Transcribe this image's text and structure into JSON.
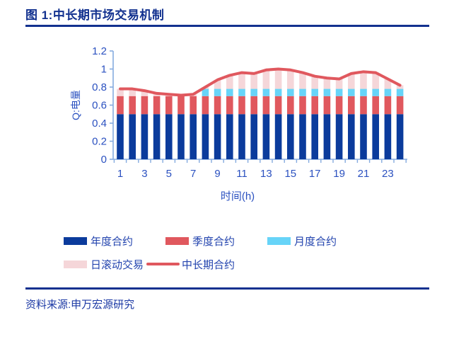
{
  "page": {
    "title": "图 1:中长期市场交易机制",
    "source": "资料来源:申万宏源研究",
    "accent_color": "#12318f"
  },
  "chart_data": {
    "type": "bar",
    "subtype": "stacked-bar-with-line-overlay",
    "title": "",
    "xlabel": "时间(h)",
    "ylabel": "Q:电量",
    "x": [
      1,
      2,
      3,
      4,
      5,
      6,
      7,
      8,
      9,
      10,
      11,
      12,
      13,
      14,
      15,
      16,
      17,
      18,
      19,
      20,
      21,
      22,
      23,
      24
    ],
    "x_tick_labels": [
      "1",
      "3",
      "5",
      "7",
      "9",
      "11",
      "13",
      "15",
      "17",
      "19",
      "21",
      "23"
    ],
    "x_tick_values": [
      1,
      3,
      5,
      7,
      9,
      11,
      13,
      15,
      17,
      19,
      21,
      23
    ],
    "ylim": [
      0,
      1.2
    ],
    "ytick_values": [
      0,
      0.2,
      0.4,
      0.6,
      0.8,
      1,
      1.2
    ],
    "ytick_labels": [
      "0",
      "0.2",
      "0.4",
      "0.6",
      "0.8",
      "1",
      "1.2"
    ],
    "grid": false,
    "legend_position": "bottom",
    "axis_color": "#85abdf",
    "tick_label_color": "#2b51c0",
    "series": [
      {
        "key": "annual",
        "name": "年度合约",
        "type": "bar",
        "color": "#0b3b9c",
        "values": [
          0.5,
          0.5,
          0.5,
          0.5,
          0.5,
          0.5,
          0.5,
          0.5,
          0.5,
          0.5,
          0.5,
          0.5,
          0.5,
          0.5,
          0.5,
          0.5,
          0.5,
          0.5,
          0.5,
          0.5,
          0.5,
          0.5,
          0.5,
          0.5
        ]
      },
      {
        "key": "quarterly",
        "name": "季度合约",
        "type": "bar",
        "color": "#e0585e",
        "values": [
          0.2,
          0.2,
          0.2,
          0.2,
          0.2,
          0.2,
          0.2,
          0.2,
          0.2,
          0.2,
          0.2,
          0.2,
          0.2,
          0.2,
          0.2,
          0.2,
          0.2,
          0.2,
          0.2,
          0.2,
          0.2,
          0.2,
          0.2,
          0.2
        ]
      },
      {
        "key": "monthly",
        "name": "月度合约",
        "type": "bar",
        "color": "#67d4f8",
        "values": [
          0,
          0,
          0,
          0,
          0,
          0,
          0,
          0.08,
          0.08,
          0.08,
          0.08,
          0.08,
          0.08,
          0.08,
          0.08,
          0.08,
          0.08,
          0.08,
          0.08,
          0.08,
          0.08,
          0.08,
          0.08,
          0.08
        ]
      },
      {
        "key": "daily-rolling",
        "name": "日滚动交易",
        "type": "bar",
        "color": "#f5d6d9",
        "values": [
          0.08,
          0.08,
          0.06,
          0.03,
          0.02,
          0.01,
          0.02,
          0.02,
          0.1,
          0.15,
          0.18,
          0.17,
          0.21,
          0.22,
          0.21,
          0.18,
          0.14,
          0.12,
          0.11,
          0.17,
          0.19,
          0.18,
          0.11,
          0.04
        ]
      },
      {
        "key": "medium-long-term",
        "name": "中长期合约",
        "type": "line",
        "color": "#e0585e",
        "values": [
          0.78,
          0.78,
          0.76,
          0.73,
          0.72,
          0.71,
          0.72,
          0.8,
          0.88,
          0.93,
          0.96,
          0.95,
          0.99,
          1.0,
          0.99,
          0.96,
          0.92,
          0.9,
          0.89,
          0.95,
          0.97,
          0.96,
          0.89,
          0.82
        ]
      }
    ]
  }
}
